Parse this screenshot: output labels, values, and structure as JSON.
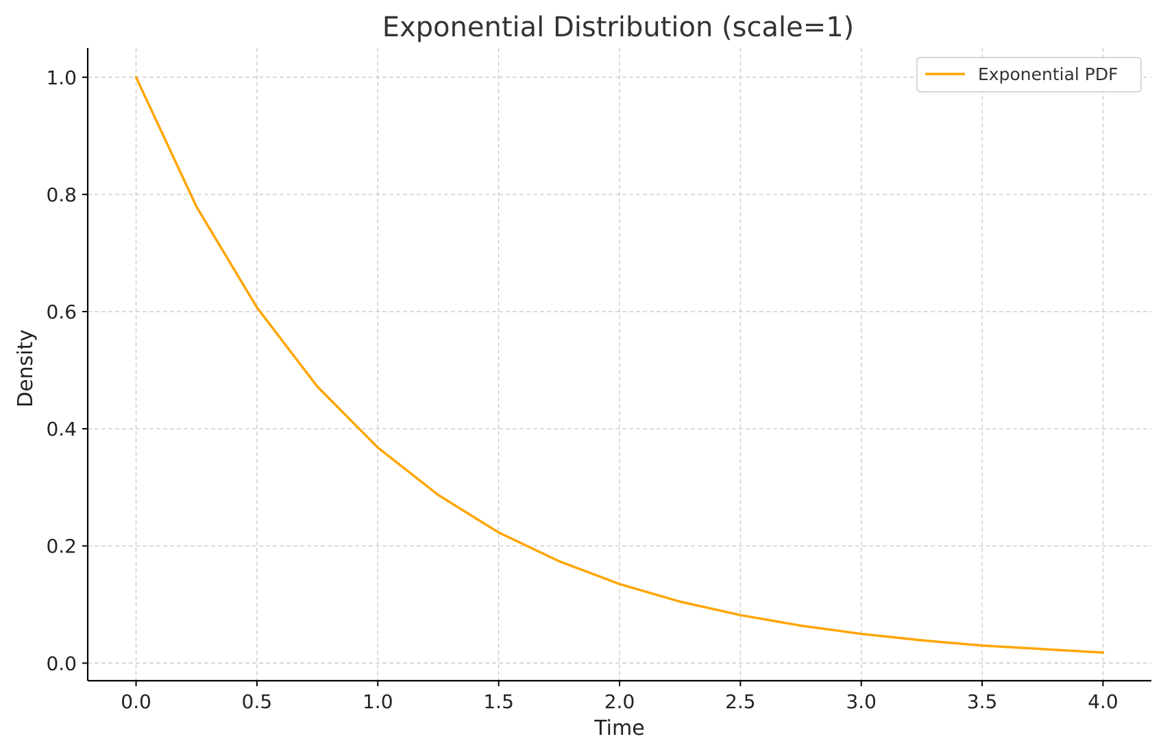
{
  "chart_data": {
    "type": "line",
    "title": "Exponential Distribution (scale=1)",
    "xlabel": "Time",
    "ylabel": "Density",
    "xlim": [
      -0.2,
      4.2
    ],
    "ylim": [
      -0.03,
      1.05
    ],
    "xticks": [
      0.0,
      0.5,
      1.0,
      1.5,
      2.0,
      2.5,
      3.0,
      3.5,
      4.0
    ],
    "xtick_labels": [
      "0.0",
      "0.5",
      "1.0",
      "1.5",
      "2.0",
      "2.5",
      "3.0",
      "3.5",
      "4.0"
    ],
    "yticks": [
      0.0,
      0.2,
      0.4,
      0.6,
      0.8,
      1.0
    ],
    "ytick_labels": [
      "0.0",
      "0.2",
      "0.4",
      "0.6",
      "0.8",
      "1.0"
    ],
    "grid": true,
    "legend": "top-right",
    "series": [
      {
        "name": "Exponential PDF",
        "color": "#ffa500",
        "x": [
          0.0,
          0.25,
          0.5,
          0.75,
          1.0,
          1.25,
          1.5,
          1.75,
          2.0,
          2.25,
          2.5,
          2.75,
          3.0,
          3.25,
          3.5,
          3.75,
          4.0
        ],
        "y": [
          1.0,
          0.779,
          0.607,
          0.472,
          0.368,
          0.287,
          0.223,
          0.174,
          0.135,
          0.105,
          0.082,
          0.064,
          0.05,
          0.039,
          0.03,
          0.024,
          0.018
        ]
      }
    ]
  }
}
